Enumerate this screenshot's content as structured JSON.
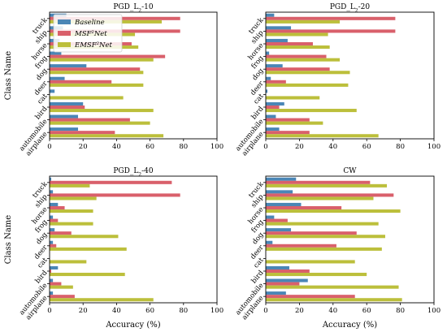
{
  "series_names": [
    "Baseline",
    "MSF²Net",
    "EMSF²Net"
  ],
  "colors": [
    "#4a86b6",
    "#d9606b",
    "#bcbf3b"
  ],
  "ylabel": "Class Name",
  "xlabel": "Accuracy (%)",
  "chart_data": [
    {
      "type": "bar",
      "orientation": "horizontal",
      "title": "PGD_L₂-10",
      "title_main": "PGD_L",
      "title_sub": "2",
      "title_suffix": "-10",
      "categories": [
        "airplane",
        "automobile",
        "bird",
        "cat",
        "deer",
        "dog",
        "frog",
        "horse",
        "ship",
        "truck"
      ],
      "series": [
        {
          "name": "Baseline",
          "values": [
            17,
            17,
            20,
            3,
            9,
            22,
            7,
            6,
            8,
            10
          ]
        },
        {
          "name": "MSF²Net",
          "values": [
            39,
            48,
            21,
            0,
            37,
            54,
            69,
            49,
            78,
            78
          ]
        },
        {
          "name": "EMSF²Net",
          "values": [
            68,
            60,
            62,
            44,
            56,
            56,
            62,
            53,
            51,
            67
          ]
        }
      ],
      "xlim": [
        0,
        100
      ],
      "xticks": [
        0,
        20,
        40,
        60,
        80,
        100
      ],
      "xlabel": "",
      "ylabel": "Class Name",
      "legend": "top-left",
      "grid": false
    },
    {
      "type": "bar",
      "orientation": "horizontal",
      "title": "PGD_L₂-20",
      "title_main": "PGD_L",
      "title_sub": "2",
      "title_suffix": "-20",
      "categories": [
        "airplane",
        "automobile",
        "bird",
        "cat",
        "deer",
        "dog",
        "frog",
        "horse",
        "ship",
        "truck"
      ],
      "series": [
        {
          "name": "Baseline",
          "values": [
            8,
            6,
            11,
            1,
            3,
            10,
            2,
            13,
            15,
            5
          ]
        },
        {
          "name": "MSF²Net",
          "values": [
            26,
            26,
            8,
            0,
            12,
            38,
            36,
            28,
            77,
            77
          ]
        },
        {
          "name": "EMSF²Net",
          "values": [
            67,
            34,
            54,
            32,
            49,
            50,
            44,
            38,
            37,
            44
          ]
        }
      ],
      "xlim": [
        0,
        100
      ],
      "xticks": [
        0,
        20,
        40,
        60,
        80,
        100
      ],
      "xlabel": "",
      "ylabel": "",
      "grid": false
    },
    {
      "type": "bar",
      "orientation": "horizontal",
      "title": "PGD_L₂-40",
      "title_main": "PGD_L",
      "title_sub": "2",
      "title_suffix": "-40",
      "categories": [
        "airplane",
        "automobile",
        "bird",
        "cat",
        "deer",
        "dog",
        "frog",
        "horse",
        "ship",
        "truck"
      ],
      "series": [
        {
          "name": "Baseline",
          "values": [
            2,
            2,
            5,
            0,
            2,
            3,
            2,
            5,
            2,
            1
          ]
        },
        {
          "name": "MSF²Net",
          "values": [
            15,
            7,
            1,
            0,
            4,
            13,
            5,
            9,
            78,
            73
          ]
        },
        {
          "name": "EMSF²Net",
          "values": [
            62,
            14,
            45,
            22,
            46,
            41,
            26,
            26,
            28,
            24
          ]
        }
      ],
      "xlim": [
        0,
        100
      ],
      "xticks": [
        0,
        20,
        40,
        60,
        80,
        100
      ],
      "xlabel": "Accuracy (%)",
      "ylabel": "Class Name",
      "grid": false
    },
    {
      "type": "bar",
      "orientation": "horizontal",
      "title": "CW",
      "title_main": "CW",
      "title_sub": "",
      "title_suffix": "",
      "categories": [
        "airplane",
        "automobile",
        "bird",
        "cat",
        "deer",
        "dog",
        "frog",
        "horse",
        "ship",
        "truck"
      ],
      "series": [
        {
          "name": "Baseline",
          "values": [
            12,
            25,
            14,
            0,
            4,
            15,
            5,
            21,
            16,
            18
          ]
        },
        {
          "name": "MSF²Net",
          "values": [
            53,
            20,
            26,
            0,
            42,
            54,
            13,
            45,
            76,
            62
          ]
        },
        {
          "name": "EMSF²Net",
          "values": [
            81,
            79,
            60,
            53,
            69,
            71,
            67,
            80,
            64,
            72
          ]
        }
      ],
      "xlim": [
        0,
        100
      ],
      "xticks": [
        0,
        20,
        40,
        60,
        80,
        100
      ],
      "xlabel": "Accuracy (%)",
      "ylabel": "",
      "grid": false
    }
  ]
}
